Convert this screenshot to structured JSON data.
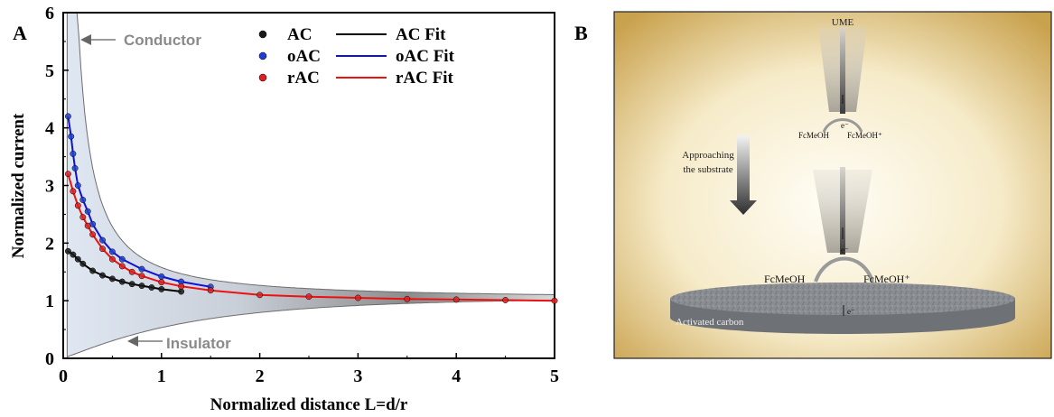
{
  "panel_a_label": "A",
  "panel_b_label": "B",
  "chart_data": {
    "type": "scatter",
    "xlabel": "Normalized distance L=d/r",
    "ylabel": "Normalized current",
    "xlim": [
      0,
      5
    ],
    "ylim": [
      0,
      6
    ],
    "xticks": [
      "0",
      "1",
      "2",
      "3",
      "4",
      "5"
    ],
    "yticks": [
      "0",
      "1",
      "2",
      "3",
      "4",
      "5",
      "6"
    ],
    "grid": false,
    "legend_position": "top-center",
    "annotations": [
      "Conductor",
      "Insulator"
    ],
    "series": [
      {
        "name": "AC",
        "marker_color": "#1a1a1a",
        "fit_name": "AC Fit",
        "fit_color": "#000000",
        "x": [
          0.05,
          0.1,
          0.15,
          0.2,
          0.3,
          0.4,
          0.5,
          0.6,
          0.7,
          0.8,
          0.9,
          1.0,
          1.2
        ],
        "y": [
          1.86,
          1.8,
          1.72,
          1.64,
          1.52,
          1.44,
          1.38,
          1.33,
          1.29,
          1.26,
          1.23,
          1.2,
          1.16
        ]
      },
      {
        "name": "oAC",
        "marker_color": "#1d3fd8",
        "fit_name": "oAC Fit",
        "fit_color": "#1010d8",
        "x": [
          0.05,
          0.08,
          0.1,
          0.12,
          0.15,
          0.2,
          0.25,
          0.3,
          0.4,
          0.5,
          0.6,
          0.8,
          1.0,
          1.2,
          1.5
        ],
        "y": [
          4.2,
          3.85,
          3.55,
          3.3,
          3.0,
          2.75,
          2.55,
          2.33,
          2.05,
          1.85,
          1.72,
          1.55,
          1.42,
          1.33,
          1.24
        ]
      },
      {
        "name": "rAC",
        "marker_color": "#e02020",
        "fit_name": "rAC Fit",
        "fit_color": "#ee1111",
        "x": [
          0.05,
          0.1,
          0.15,
          0.2,
          0.25,
          0.3,
          0.4,
          0.5,
          0.6,
          0.7,
          0.8,
          1.0,
          1.2,
          1.5,
          2.0,
          2.5,
          3.0,
          3.5,
          4.0,
          4.5,
          5.0
        ],
        "y": [
          3.2,
          2.9,
          2.65,
          2.45,
          2.3,
          2.15,
          1.9,
          1.72,
          1.6,
          1.5,
          1.43,
          1.32,
          1.25,
          1.18,
          1.1,
          1.07,
          1.05,
          1.03,
          1.02,
          1.01,
          1.0
        ]
      }
    ]
  },
  "schematic": {
    "ume_label": "UME",
    "electron_label": "e⁻",
    "top_left_species": "FcMeOH",
    "top_right_species": "FcMeOH⁺",
    "arrow_text_line1": "Approaching",
    "arrow_text_line2": "the substrate",
    "bottom_left_species": "FcMeOH",
    "bottom_right_species": "FcMeOH⁺",
    "substrate_label": "Activated carbon"
  }
}
